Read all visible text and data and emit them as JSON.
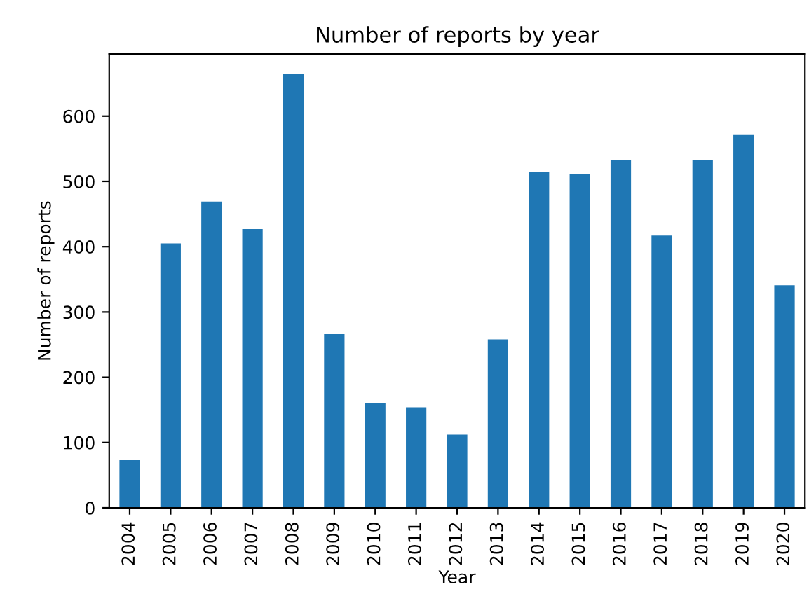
{
  "chart_data": {
    "type": "bar",
    "title": "Number of reports by year",
    "xlabel": "Year",
    "ylabel": "Number of reports",
    "categories": [
      "2004",
      "2005",
      "2006",
      "2007",
      "2008",
      "2009",
      "2010",
      "2011",
      "2012",
      "2013",
      "2014",
      "2015",
      "2016",
      "2017",
      "2018",
      "2019",
      "2020"
    ],
    "values": [
      74,
      405,
      469,
      427,
      664,
      266,
      161,
      154,
      112,
      258,
      514,
      511,
      533,
      417,
      533,
      571,
      341
    ],
    "color": "#1f77b4",
    "ylim": [
      0,
      695
    ],
    "yticks": [
      0,
      100,
      200,
      300,
      400,
      500,
      600
    ],
    "grid": false
  }
}
